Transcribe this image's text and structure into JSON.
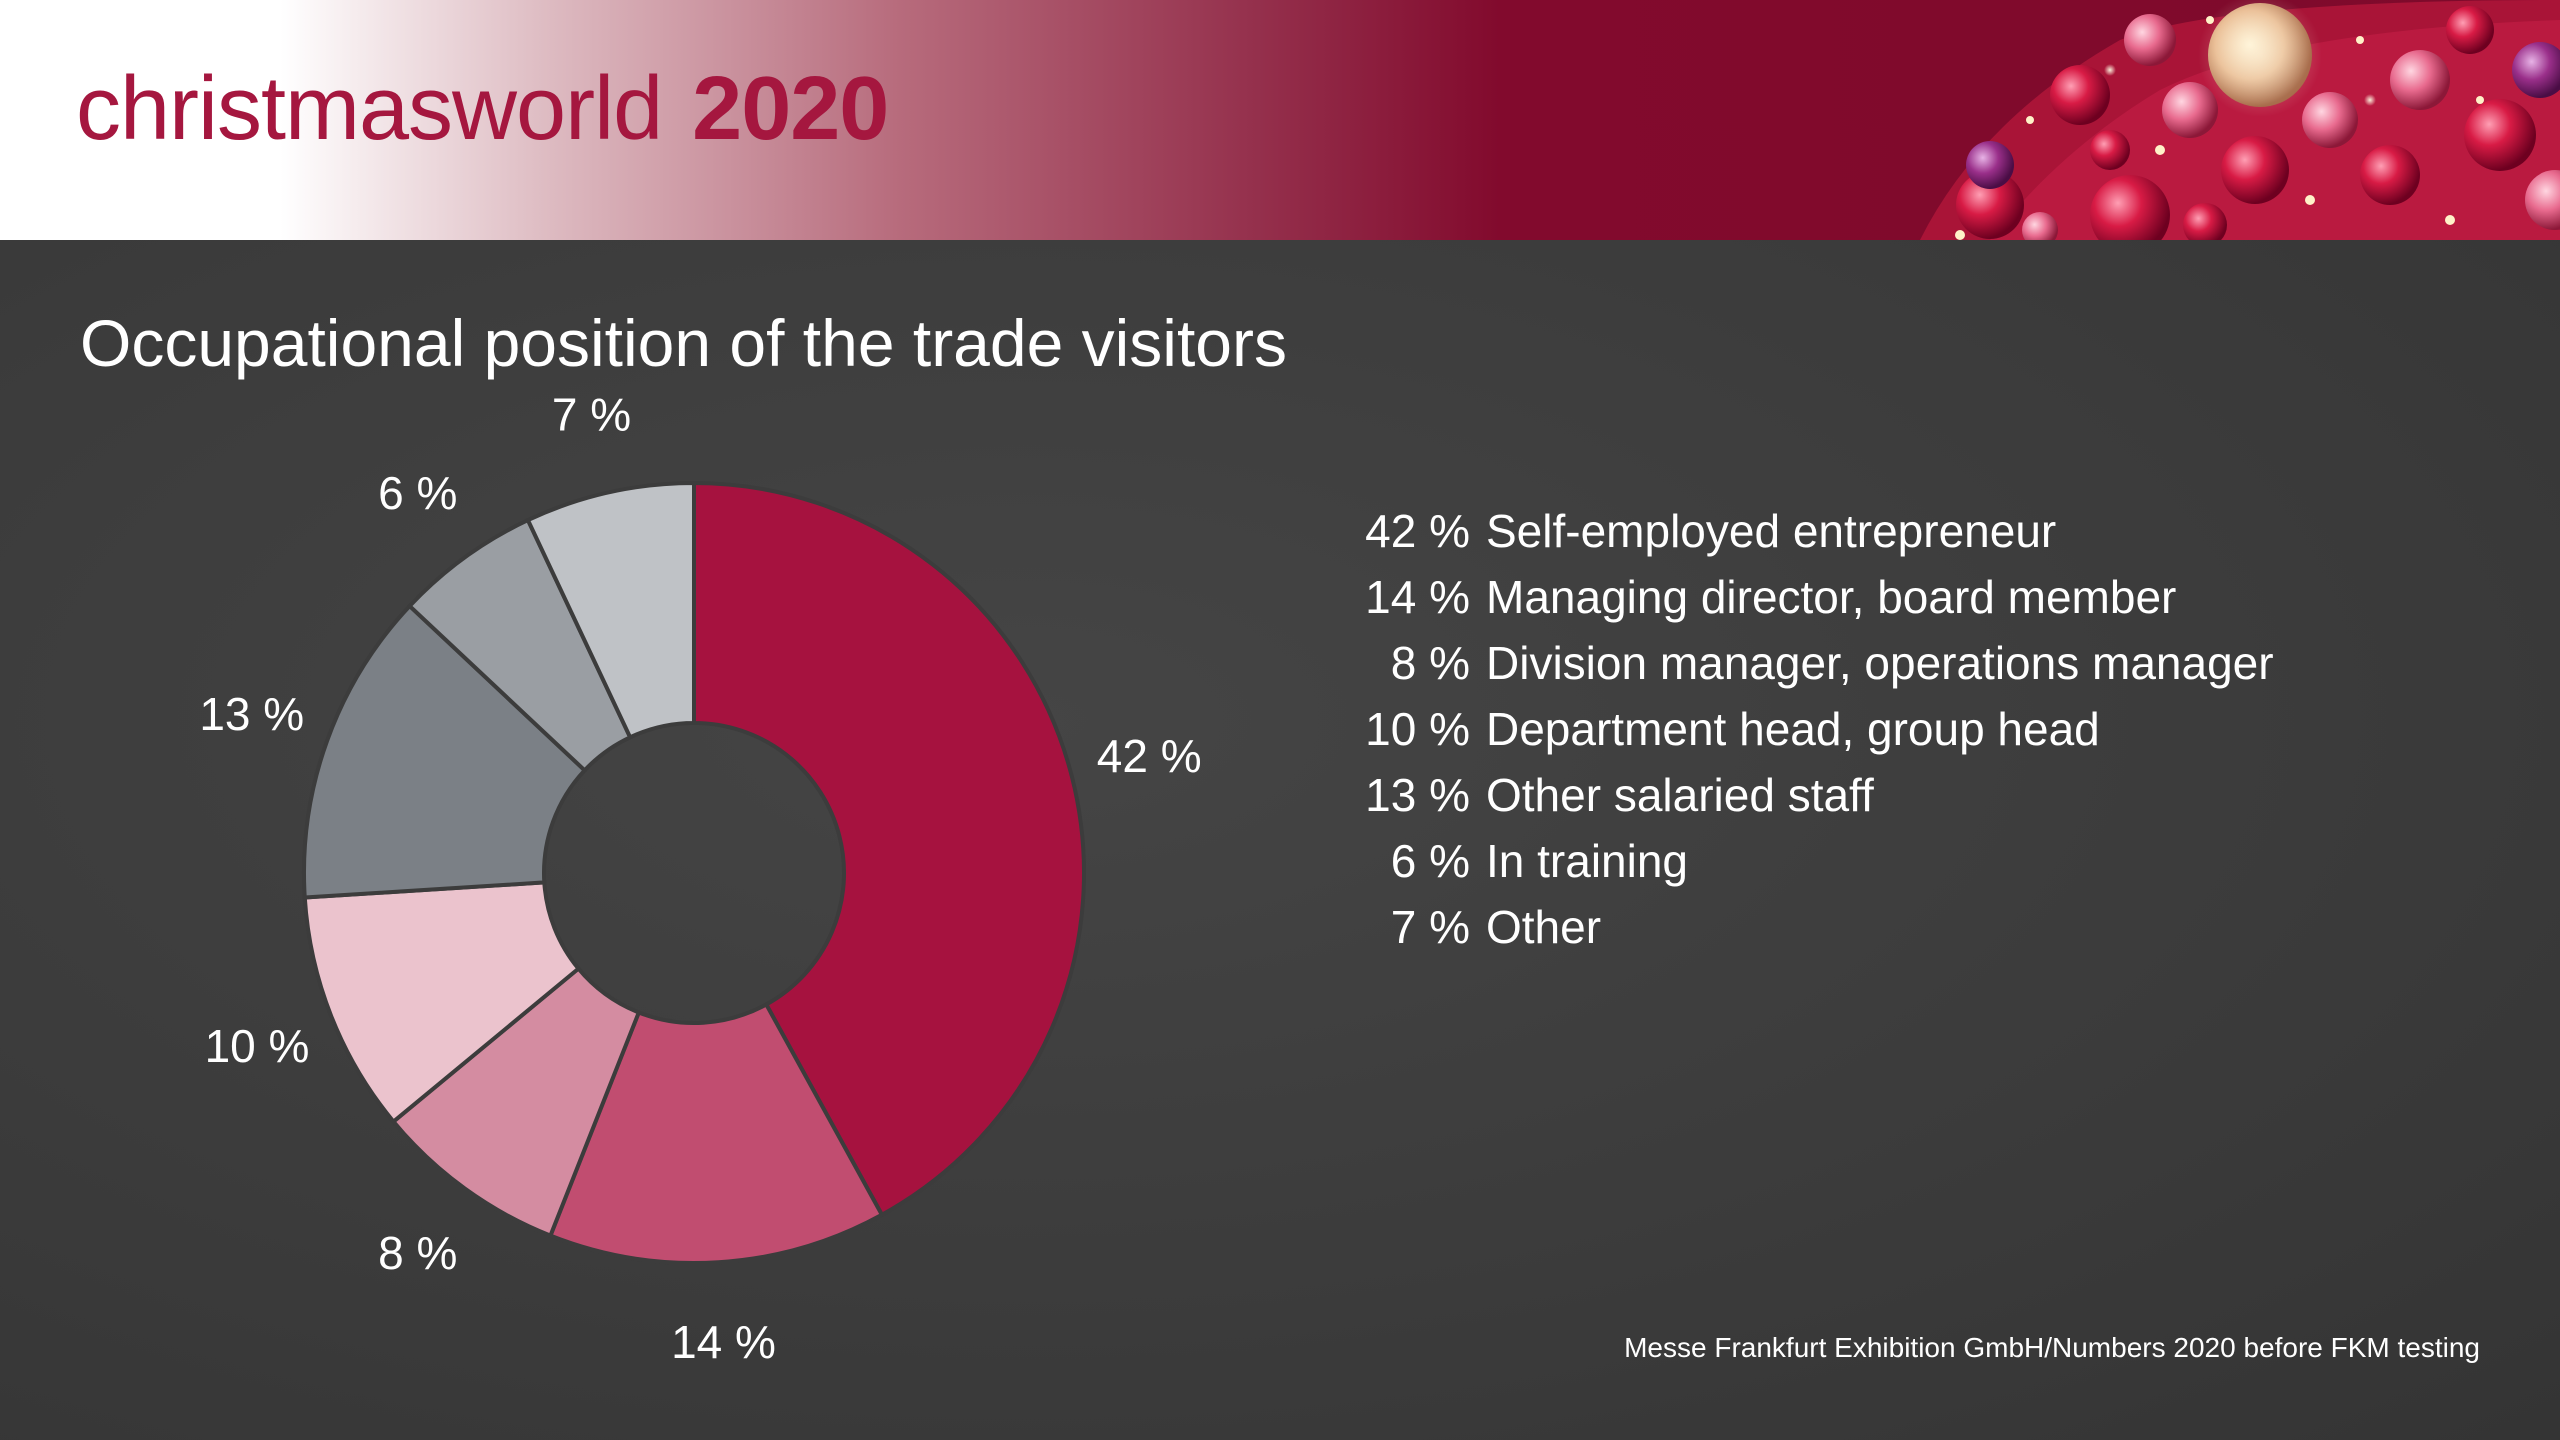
{
  "header": {
    "brand": "christmasworld",
    "year": "2020"
  },
  "chart_data": {
    "type": "pie",
    "title": "Occupational position of the trade visitors",
    "donut": true,
    "categories": [
      "Self-employed entrepreneur",
      "Managing director, board member",
      "Division manager, operations manager",
      "Department head, group head",
      "Other salaried staff",
      "In training",
      "Other"
    ],
    "values": [
      42,
      14,
      8,
      10,
      13,
      6,
      7
    ],
    "labels": [
      "42 %",
      "14 %",
      "8 %",
      "10 %",
      "13 %",
      "6 %",
      "7 %"
    ],
    "colors": [
      "#a6123f",
      "#c14d70",
      "#d48ca1",
      "#ebc3cd",
      "#7b8086",
      "#9a9ea3",
      "#bfc2c6"
    ],
    "legend_position": "right"
  },
  "source": "Messe Frankfurt Exhibition GmbH/Numbers 2020 before FKM testing",
  "colors": {
    "brand": "#a5173f",
    "header_dark": "#7e0a2b",
    "background": "#3c3c3c"
  }
}
